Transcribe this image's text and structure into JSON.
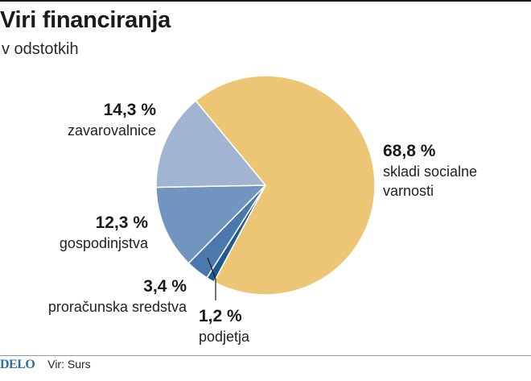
{
  "title": "Viri financiranja",
  "subtitle": "v odstotkih",
  "chart_data": {
    "type": "pie",
    "title": "Viri financiranja",
    "subtitle": "v odstotkih",
    "slices": [
      {
        "label": "skladi socialne varnosti",
        "pct_label": "68,8 %",
        "value": 68.8,
        "color": "#ecc675"
      },
      {
        "label": "podjetja",
        "pct_label": "1,2 %",
        "value": 1.2,
        "color": "#1f5b92"
      },
      {
        "label": "proračunska sredstva",
        "pct_label": "3,4 %",
        "value": 3.4,
        "color": "#4c79ad"
      },
      {
        "label": "gospodinjstva",
        "pct_label": "12,3 %",
        "value": 12.3,
        "color": "#7295bf"
      },
      {
        "label": "zavarovalnice",
        "pct_label": "14,3 %",
        "value": 14.3,
        "color": "#a1b5d3"
      }
    ]
  },
  "labels": {
    "skladi": {
      "pct": "68,8 %",
      "line1": "skladi socialne",
      "line2": "varnosti"
    },
    "podjetja": {
      "pct": "1,2 %",
      "name": "podjetja"
    },
    "proracun": {
      "pct": "3,4 %",
      "name": "proračunska sredstva"
    },
    "gospodinjstva": {
      "pct": "12,3 %",
      "name": "gospodinjstva"
    },
    "zavarovalnice": {
      "pct": "14,3 %",
      "name": "zavarovalnice"
    }
  },
  "footer": {
    "brand": "DELO",
    "source": "Vir: Surs"
  }
}
